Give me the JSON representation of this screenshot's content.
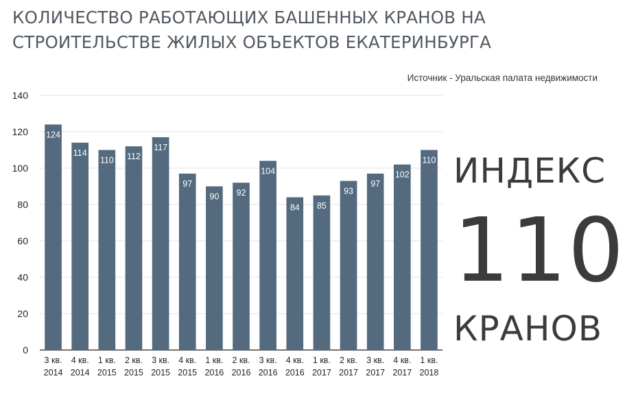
{
  "header": {
    "title_line1": "КОЛИЧЕСТВО РАБОТАЮЩИХ БАШЕННЫХ КРАНОВ НА",
    "title_line2": "СТРОИТЕЛЬСТВЕ ЖИЛЫХ ОБЪЕКТОВ ЕКАТЕРИНБУРГА",
    "source": "Источник - Уральская палата недвижимости"
  },
  "index_block": {
    "top_text": "ИНДЕКС",
    "number": "110",
    "bottom_text": "КРАНОВ"
  },
  "colors": {
    "bar": "#546a7e",
    "grid": "#e3e3e3",
    "axis": "#222222"
  },
  "chart_data": {
    "type": "bar",
    "title": "КОЛИЧЕСТВО РАБОТАЮЩИХ БАШЕННЫХ КРАНОВ НА СТРОИТЕЛЬСТВЕ ЖИЛЫХ ОБЪЕКТОВ ЕКАТЕРИНБУРГА",
    "xlabel": "",
    "ylabel": "",
    "ylim": [
      0,
      140
    ],
    "yticks": [
      0,
      20,
      40,
      60,
      80,
      100,
      120,
      140
    ],
    "grid": true,
    "legend": "none",
    "categories": [
      [
        "3 кв.",
        "2014"
      ],
      [
        "4 кв.",
        "2014"
      ],
      [
        "1 кв.",
        "2015"
      ],
      [
        "2 кв.",
        "2015"
      ],
      [
        "3 кв.",
        "2015"
      ],
      [
        "4 кв.",
        "2015"
      ],
      [
        "1 кв.",
        "2016"
      ],
      [
        "2 кв.",
        "2016"
      ],
      [
        "3 кв.",
        "2016"
      ],
      [
        "4 кв.",
        "2016"
      ],
      [
        "1 кв.",
        "2017"
      ],
      [
        "2 кв.",
        "2017"
      ],
      [
        "3 кв.",
        "2017"
      ],
      [
        "4 кв.",
        "2017"
      ],
      [
        "1 кв.",
        "2018"
      ]
    ],
    "values": [
      124,
      114,
      110,
      112,
      117,
      97,
      90,
      92,
      104,
      84,
      85,
      93,
      97,
      102,
      110
    ]
  }
}
